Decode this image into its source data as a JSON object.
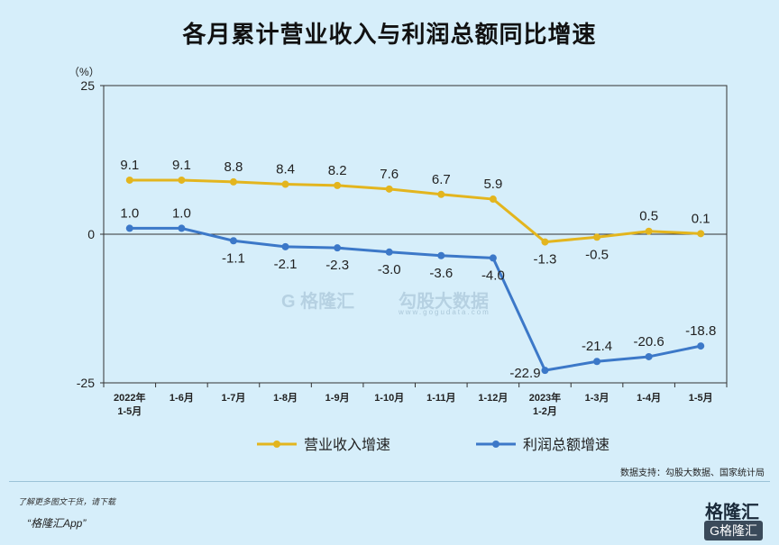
{
  "title": "各月累计营业收入与利润总额同比增速",
  "watermark": {
    "brand": "G 格隆汇",
    "data": "勾股大数据",
    "url": "www.gogudata.com"
  },
  "source": "数据支持：勾股大数据、国家统计局",
  "footer": {
    "note": "了解更多图文干货，请下载",
    "app": "“格隆汇App”",
    "brand": "格隆汇",
    "brand_sub": "G格隆汇"
  },
  "chart_data": {
    "type": "line",
    "unit_label": "（%）",
    "ylim": [
      -25,
      25
    ],
    "yticks": [
      25,
      0,
      -25
    ],
    "categories": [
      [
        "2022年",
        "1-5月"
      ],
      [
        "1-6月"
      ],
      [
        "1-7月"
      ],
      [
        "1-8月"
      ],
      [
        "1-9月"
      ],
      [
        "1-10月"
      ],
      [
        "1-11月"
      ],
      [
        "1-12月"
      ],
      [
        "2023年",
        "1-2月"
      ],
      [
        "1-3月"
      ],
      [
        "1-4月"
      ],
      [
        "1-5月"
      ]
    ],
    "series": [
      {
        "name": "营业收入增速",
        "color": "#e3b51e",
        "values": [
          9.1,
          9.1,
          8.8,
          8.4,
          8.2,
          7.6,
          6.7,
          5.9,
          -1.3,
          -0.5,
          0.5,
          0.1
        ]
      },
      {
        "name": "利润总额增速",
        "color": "#3c78c8",
        "values": [
          1.0,
          1.0,
          -1.1,
          -2.1,
          -2.3,
          -3.0,
          -3.6,
          -4.0,
          -22.9,
          -21.4,
          -20.6,
          -18.8
        ]
      }
    ],
    "legend_position": "bottom",
    "grid": false
  }
}
